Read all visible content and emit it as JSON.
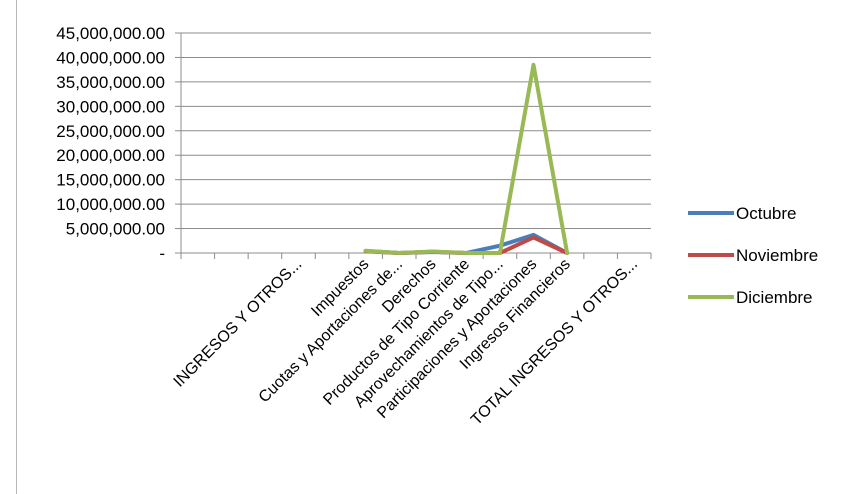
{
  "chart_data": {
    "type": "line",
    "title": "",
    "xlabel": "",
    "ylabel": "",
    "ylim": [
      0,
      45000000
    ],
    "y_ticks": [
      {
        "value": 45000000,
        "label": "45,000,000.00"
      },
      {
        "value": 40000000,
        "label": "40,000,000.00"
      },
      {
        "value": 35000000,
        "label": "35,000,000.00"
      },
      {
        "value": 30000000,
        "label": "30,000,000.00"
      },
      {
        "value": 25000000,
        "label": "25,000,000.00"
      },
      {
        "value": 20000000,
        "label": "20,000,000.00"
      },
      {
        "value": 15000000,
        "label": "15,000,000.00"
      },
      {
        "value": 10000000,
        "label": "10,000,000.00"
      },
      {
        "value": 5000000,
        "label": "5,000,000.00"
      },
      {
        "value": 0,
        "label": "-"
      }
    ],
    "grid": true,
    "legend_position": "right",
    "categories": [
      "",
      "",
      "",
      "INGRESOS Y OTROS...",
      "",
      "Impuestos",
      "Cuotas y Aportaciones de...",
      "Derechos",
      "Productos de Tipo Corriente",
      "Aprovechamientos de Tipo...",
      "Participaciones y Aportaciones",
      "Ingresos Financieros",
      "",
      "TOTAL  INGRESOS Y OTROS..."
    ],
    "series": [
      {
        "name": "Octubre",
        "color": "#4a7ebb",
        "values": [
          null,
          null,
          null,
          null,
          null,
          400000,
          0,
          200000,
          0,
          1500000,
          3700000,
          0,
          null,
          null
        ]
      },
      {
        "name": "Noviembre",
        "color": "#be4b48",
        "values": [
          null,
          null,
          null,
          null,
          null,
          350000,
          0,
          250000,
          0,
          0,
          3200000,
          0,
          null,
          null
        ]
      },
      {
        "name": "Diciembre",
        "color": "#98b954",
        "values": [
          null,
          null,
          null,
          null,
          null,
          450000,
          0,
          300000,
          0,
          0,
          38500000,
          0,
          null,
          null
        ]
      }
    ]
  }
}
